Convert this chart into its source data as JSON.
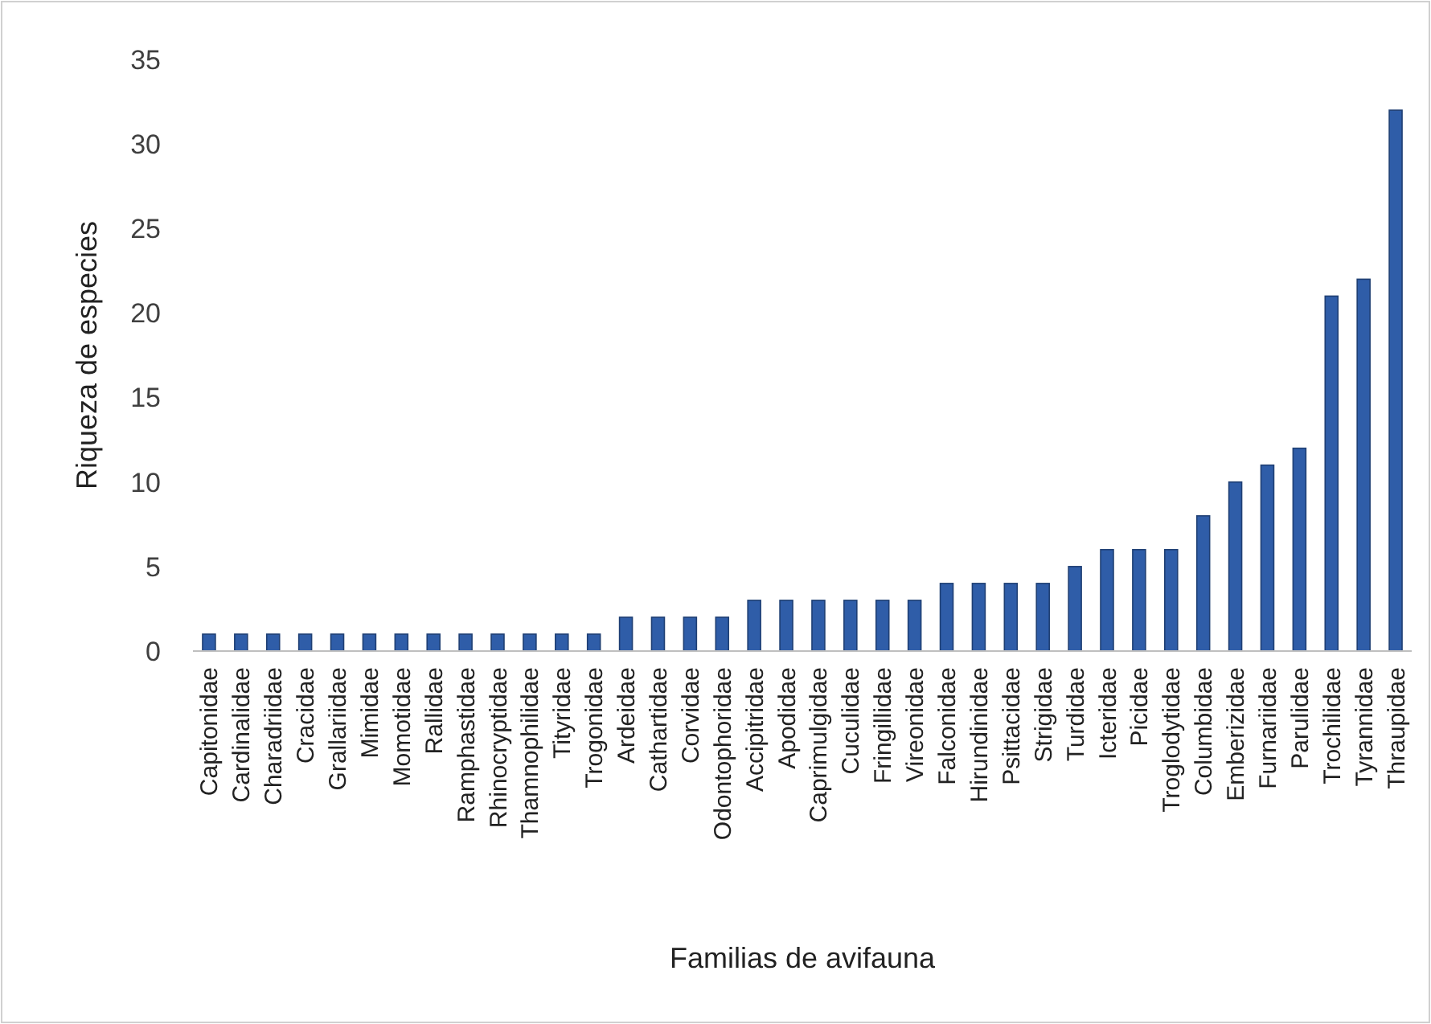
{
  "chart_data": {
    "type": "bar",
    "xlabel": "Familias de avifauna",
    "ylabel": "Riqueza de especies",
    "categories": [
      "Capitonidae",
      "Cardinalidae",
      "Charadriidae",
      "Cracidae",
      "Grallariidae",
      "Mimidae",
      "Momotidae",
      "Rallidae",
      "Ramphastidae",
      "Rhinocryptidae",
      "Thamnophilidae",
      "Tityridae",
      "Trogonidae",
      "Ardeidae",
      "Cathartidae",
      "Corvidae",
      "Odontophoridae",
      "Accipitridae",
      "Apodidae",
      "Caprimulgidae",
      "Cuculidae",
      "Fringillidae",
      "Vireonidae",
      "Falconidae",
      "Hirundinidae",
      "Psittacidae",
      "Strigidae",
      "Turdidae",
      "Icteridae",
      "Picidae",
      "Troglodytidae",
      "Columbidae",
      "Emberizidae",
      "Furnariidae",
      "Parulidae",
      "Trochilidae",
      "Tyrannidae",
      "Thraupidae"
    ],
    "values": [
      1,
      1,
      1,
      1,
      1,
      1,
      1,
      1,
      1,
      1,
      1,
      1,
      1,
      2,
      2,
      2,
      2,
      3,
      3,
      3,
      3,
      3,
      3,
      4,
      4,
      4,
      4,
      5,
      6,
      6,
      6,
      8,
      10,
      11,
      12,
      21,
      22,
      32
    ],
    "color": "#2f5da8",
    "ylim": [
      0,
      35
    ],
    "yticks": [
      0,
      5,
      10,
      15,
      20,
      25,
      30,
      35
    ],
    "grid": false
  }
}
